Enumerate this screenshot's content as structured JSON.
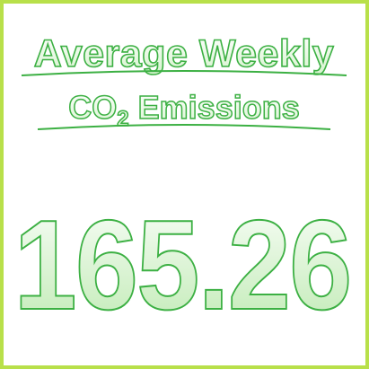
{
  "title": {
    "line1": "Average Weekly",
    "line2_main": "CO",
    "line2_subscript": "2",
    "line2_rest": " Emissions"
  },
  "value": "165.26",
  "colors": {
    "border": "#b8e04a",
    "text_stroke": "#3cb043",
    "fill_light": "#f4fcf2",
    "fill_dark": "#c8efbe"
  }
}
